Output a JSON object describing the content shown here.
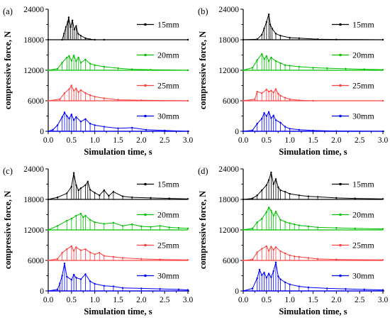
{
  "chart_data": [
    {
      "type": "line",
      "panel_label": "(a)",
      "xlabel": "Simulation time, s",
      "ylabel": "compressive force, N",
      "xlim": [
        0,
        3
      ],
      "ylim": [
        0,
        24000
      ],
      "x_ticks": [
        "0.0",
        "0.5",
        "1.0",
        "1.5",
        "2.0",
        "2.5",
        "3.0"
      ],
      "y_ticks": [
        "0",
        "6000",
        "12000",
        "18000",
        "24000"
      ],
      "grid": false,
      "legend_position": "right, one label per trace",
      "series": [
        {
          "name": "15mm",
          "color": "#000000",
          "baseline": 18000,
          "x": [
            0.0,
            0.3,
            0.34,
            0.38,
            0.42,
            0.44,
            0.48,
            0.52,
            0.56,
            0.6,
            0.64,
            0.7,
            0.8,
            0.9,
            1.0,
            1.2,
            3.0
          ],
          "y": [
            18000,
            18000,
            19200,
            20500,
            21500,
            22400,
            20500,
            21800,
            20000,
            20700,
            19200,
            18800,
            18300,
            18100,
            18000,
            18000,
            18000
          ]
        },
        {
          "name": "20mm",
          "color": "#00c000",
          "baseline": 12000,
          "x": [
            0.0,
            0.2,
            0.3,
            0.4,
            0.45,
            0.5,
            0.55,
            0.6,
            0.65,
            0.7,
            0.8,
            0.9,
            1.0,
            1.2,
            1.5,
            1.8,
            2.2,
            3.0
          ],
          "y": [
            12000,
            12300,
            13500,
            14500,
            14800,
            13900,
            14900,
            13800,
            14500,
            13500,
            14100,
            13300,
            13000,
            12700,
            12400,
            12200,
            12100,
            12000
          ]
        },
        {
          "name": "25mm",
          "color": "#ff4040",
          "baseline": 6000,
          "x": [
            0.0,
            0.25,
            0.35,
            0.45,
            0.5,
            0.55,
            0.6,
            0.65,
            0.7,
            0.8,
            0.9,
            1.0,
            1.2,
            1.5,
            2.0,
            3.0
          ],
          "y": [
            6000,
            6300,
            7500,
            8300,
            9000,
            8000,
            8400,
            7700,
            8100,
            7500,
            7100,
            6800,
            6500,
            6200,
            6100,
            6000
          ]
        },
        {
          "name": "30mm",
          "color": "#0000ff",
          "baseline": 0,
          "x": [
            0.0,
            0.1,
            0.2,
            0.3,
            0.35,
            0.4,
            0.45,
            0.5,
            0.55,
            0.6,
            0.7,
            0.8,
            0.9,
            1.0,
            1.2,
            1.5,
            1.8,
            2.1,
            2.5,
            3.0
          ],
          "y": [
            0,
            300,
            1200,
            2800,
            3700,
            3000,
            2500,
            3300,
            2200,
            2800,
            1900,
            2400,
            1500,
            1200,
            900,
            600,
            700,
            300,
            150,
            0
          ]
        }
      ]
    },
    {
      "type": "line",
      "panel_label": "(b)",
      "xlabel": "Simulation time, s",
      "ylabel": "compressive force, N",
      "xlim": [
        0,
        3
      ],
      "ylim": [
        0,
        24000
      ],
      "x_ticks": [
        "0.0",
        "0.5",
        "1.0",
        "1.5",
        "2.0",
        "2.5",
        "3.0"
      ],
      "y_ticks": [
        "0",
        "6000",
        "12000",
        "18000",
        "24000"
      ],
      "grid": false,
      "legend_position": "right, one label per trace",
      "series": [
        {
          "name": "15mm",
          "color": "#000000",
          "baseline": 18000,
          "x": [
            0.0,
            0.3,
            0.4,
            0.45,
            0.5,
            0.55,
            0.58,
            0.62,
            0.7,
            0.8,
            1.0,
            1.2,
            1.6,
            2.0,
            3.0
          ],
          "y": [
            18000,
            18100,
            19000,
            20200,
            21500,
            23000,
            21000,
            20200,
            19200,
            18800,
            18400,
            18300,
            18100,
            18050,
            18000
          ]
        },
        {
          "name": "20mm",
          "color": "#00c000",
          "baseline": 12000,
          "x": [
            0.0,
            0.2,
            0.3,
            0.4,
            0.45,
            0.5,
            0.55,
            0.6,
            0.7,
            0.8,
            0.9,
            1.0,
            1.2,
            1.5,
            1.8,
            2.2,
            2.6,
            3.0
          ],
          "y": [
            12000,
            12500,
            14000,
            15200,
            14200,
            14800,
            13800,
            14500,
            13800,
            13400,
            13000,
            12900,
            12700,
            12500,
            12400,
            12300,
            12200,
            12100
          ]
        },
        {
          "name": "25mm",
          "color": "#ff4040",
          "baseline": 6000,
          "x": [
            0.0,
            0.25,
            0.3,
            0.4,
            0.5,
            0.55,
            0.6,
            0.65,
            0.7,
            0.75,
            0.8,
            0.9,
            1.0,
            1.2,
            1.5,
            3.0
          ],
          "y": [
            6000,
            6300,
            7800,
            7500,
            8200,
            7800,
            8000,
            7600,
            8300,
            7400,
            7000,
            6600,
            6300,
            6100,
            6000,
            6000
          ]
        },
        {
          "name": "30mm",
          "color": "#0000ff",
          "baseline": 0,
          "x": [
            0.0,
            0.2,
            0.3,
            0.4,
            0.45,
            0.5,
            0.55,
            0.6,
            0.65,
            0.7,
            0.8,
            0.9,
            1.0,
            1.2,
            1.5,
            2.0,
            3.0
          ],
          "y": [
            0,
            200,
            1500,
            2500,
            3600,
            3000,
            3800,
            2600,
            3100,
            2200,
            1700,
            900,
            500,
            300,
            150,
            50,
            0
          ]
        }
      ]
    },
    {
      "type": "line",
      "panel_label": "(c)",
      "xlabel": "Simulation time, s",
      "ylabel": "compressive force, N",
      "xlim": [
        0,
        3
      ],
      "ylim": [
        0,
        24000
      ],
      "x_ticks": [
        "0.0",
        "0.5",
        "1.0",
        "1.5",
        "2.0",
        "2.5",
        "3.0"
      ],
      "y_ticks": [
        "0",
        "6000",
        "12000",
        "18000",
        "24000"
      ],
      "grid": false,
      "legend_position": "right, one label per trace",
      "series": [
        {
          "name": "15mm",
          "color": "#000000",
          "baseline": 18000,
          "x": [
            0.0,
            0.2,
            0.4,
            0.5,
            0.55,
            0.6,
            0.65,
            0.7,
            0.8,
            0.85,
            0.9,
            1.0,
            1.1,
            1.2,
            1.3,
            1.4,
            1.6,
            1.8,
            2.2,
            2.6,
            3.0
          ],
          "y": [
            18000,
            18400,
            19200,
            20500,
            23200,
            20800,
            19800,
            20200,
            20800,
            21500,
            19900,
            19300,
            18800,
            19800,
            18700,
            19500,
            18600,
            18400,
            18300,
            18200,
            18100
          ]
        },
        {
          "name": "20mm",
          "color": "#00c000",
          "baseline": 12000,
          "x": [
            0.0,
            0.2,
            0.4,
            0.5,
            0.6,
            0.7,
            0.75,
            0.8,
            0.9,
            1.0,
            1.2,
            1.4,
            1.6,
            1.8,
            2.0,
            2.2,
            2.4,
            2.6,
            2.8,
            3.0
          ],
          "y": [
            12000,
            12800,
            13800,
            14200,
            14800,
            15200,
            14500,
            14800,
            14000,
            13500,
            13200,
            13400,
            12800,
            13100,
            12700,
            12600,
            12800,
            12500,
            12400,
            12300
          ]
        },
        {
          "name": "25mm",
          "color": "#ff4040",
          "baseline": 6000,
          "x": [
            0.0,
            0.2,
            0.3,
            0.4,
            0.5,
            0.55,
            0.6,
            0.7,
            0.8,
            0.9,
            1.0,
            1.1,
            1.2,
            1.4,
            1.6,
            2.0,
            2.4,
            3.0
          ],
          "y": [
            6000,
            6300,
            7500,
            8200,
            8800,
            7900,
            8600,
            8000,
            8200,
            7600,
            7200,
            7500,
            6900,
            6700,
            6500,
            6300,
            6200,
            6100
          ]
        },
        {
          "name": "30mm",
          "color": "#0000ff",
          "baseline": 0,
          "x": [
            0.0,
            0.2,
            0.25,
            0.3,
            0.35,
            0.4,
            0.5,
            0.55,
            0.6,
            0.7,
            0.8,
            0.9,
            1.0,
            1.2,
            1.4,
            1.6,
            2.0,
            2.4,
            2.8,
            3.0
          ],
          "y": [
            0,
            300,
            1500,
            3000,
            5400,
            2800,
            2200,
            3200,
            2600,
            2300,
            3300,
            1900,
            1400,
            1000,
            900,
            600,
            500,
            400,
            300,
            200
          ]
        }
      ]
    },
    {
      "type": "line",
      "panel_label": "(d)",
      "xlabel": "Simulation time, s",
      "ylabel": "compressive force, N",
      "xlim": [
        0,
        3
      ],
      "ylim": [
        0,
        24000
      ],
      "x_ticks": [
        "0.0",
        "0.5",
        "1.0",
        "1.5",
        "2.0",
        "2.5",
        "3.0"
      ],
      "y_ticks": [
        "0",
        "6000",
        "12000",
        "18000",
        "24000"
      ],
      "grid": false,
      "legend_position": "right, one label per trace",
      "series": [
        {
          "name": "15mm",
          "color": "#000000",
          "baseline": 18000,
          "x": [
            0.0,
            0.2,
            0.3,
            0.4,
            0.5,
            0.55,
            0.6,
            0.65,
            0.7,
            0.75,
            0.8,
            0.9,
            1.0,
            1.2,
            1.4,
            1.6,
            2.0,
            2.4,
            3.0
          ],
          "y": [
            18000,
            18200,
            18800,
            19800,
            20800,
            21800,
            23300,
            21000,
            22000,
            20400,
            19800,
            19500,
            19100,
            18800,
            18600,
            18500,
            18300,
            18200,
            18100
          ]
        },
        {
          "name": "20mm",
          "color": "#00c000",
          "baseline": 12000,
          "x": [
            0.0,
            0.2,
            0.3,
            0.4,
            0.5,
            0.55,
            0.6,
            0.65,
            0.7,
            0.8,
            0.9,
            1.0,
            1.1,
            1.2,
            1.4,
            1.6,
            2.0,
            2.4,
            3.0
          ],
          "y": [
            12000,
            12300,
            13500,
            14200,
            15500,
            16400,
            15800,
            14800,
            15600,
            14000,
            13600,
            13300,
            13100,
            12900,
            12700,
            12500,
            12400,
            12300,
            12200
          ]
        },
        {
          "name": "25mm",
          "color": "#ff4040",
          "baseline": 6000,
          "x": [
            0.0,
            0.2,
            0.3,
            0.4,
            0.5,
            0.55,
            0.6,
            0.65,
            0.7,
            0.8,
            0.9,
            1.0,
            1.1,
            1.2,
            1.4,
            1.6,
            2.0,
            3.0
          ],
          "y": [
            6000,
            6200,
            7600,
            8300,
            8800,
            7900,
            8700,
            8100,
            8600,
            7800,
            7400,
            7000,
            6800,
            6700,
            6500,
            6300,
            6200,
            6100
          ]
        },
        {
          "name": "30mm",
          "color": "#0000ff",
          "baseline": 0,
          "x": [
            0.0,
            0.2,
            0.3,
            0.35,
            0.4,
            0.45,
            0.5,
            0.55,
            0.6,
            0.65,
            0.7,
            0.75,
            0.8,
            0.9,
            1.0,
            1.2,
            1.4,
            1.8,
            2.2,
            2.6,
            3.0
          ],
          "y": [
            0,
            500,
            2500,
            4200,
            3100,
            3600,
            2600,
            3400,
            2700,
            3900,
            5600,
            2900,
            2300,
            1700,
            1300,
            900,
            700,
            500,
            400,
            300,
            200
          ]
        }
      ]
    }
  ]
}
